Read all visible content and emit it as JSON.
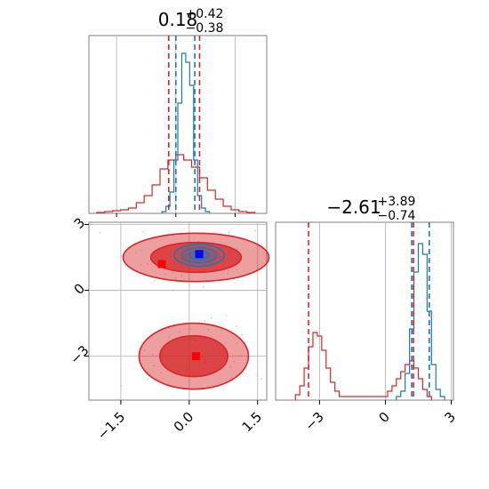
{
  "chart_data": {
    "type": "corner",
    "colors": {
      "red": "#d62728",
      "blue": "#1f77b4",
      "grid": "#b0b0b0",
      "axis": "#808080"
    },
    "series": [
      {
        "name": "",
        "color": "#d62728"
      },
      {
        "name": "",
        "color": "#1f77b4"
      }
    ],
    "panels": [
      {
        "id": "top-left-histogram",
        "type": "histogram",
        "title": {
          "main": "0.18",
          "sup": "+0.42",
          "sub": "−0.38"
        },
        "xlim": [
          -2.2,
          2.3
        ],
        "ylim": [
          0,
          1.0
        ],
        "grid": true,
        "quantile_lines": {
          "red": [
            -0.18,
            0.6
          ],
          "blue": [
            0.0,
            0.48
          ]
        },
        "red_hist": {
          "x": [
            -1.9,
            -1.7,
            -1.5,
            -1.3,
            -1.1,
            -0.9,
            -0.7,
            -0.5,
            -0.3,
            -0.1,
            0.1,
            0.3,
            0.5,
            0.7,
            0.9,
            1.1,
            1.3,
            1.5,
            1.7,
            1.9
          ],
          "y": [
            0.005,
            0.01,
            0.015,
            0.02,
            0.03,
            0.06,
            0.1,
            0.16,
            0.25,
            0.3,
            0.33,
            0.3,
            0.26,
            0.2,
            0.13,
            0.08,
            0.04,
            0.02,
            0.01,
            0.005
          ]
        },
        "blue_hist": {
          "x": [
            -0.3,
            -0.2,
            -0.1,
            0.0,
            0.1,
            0.2,
            0.3,
            0.4,
            0.5,
            0.6,
            0.7,
            0.8
          ],
          "y": [
            0.01,
            0.04,
            0.12,
            0.3,
            0.62,
            0.9,
            0.85,
            0.72,
            0.3,
            0.1,
            0.03,
            0.01
          ]
        }
      },
      {
        "id": "bottom-left-2d",
        "type": "scatter-contour",
        "xlim": [
          -2.2,
          1.7
        ],
        "ylim": [
          -5.0,
          3.1
        ],
        "xticks": [
          -1.5,
          0.0,
          1.5
        ],
        "xtick_labels": [
          "−1.5",
          "0.0",
          "1.5"
        ],
        "yticks": [
          -3,
          0,
          3
        ],
        "ytick_labels": [
          "−3",
          "0",
          "3"
        ],
        "grid": true,
        "red_modes": [
          {
            "x": 0.15,
            "y": 1.5,
            "rx": 1.6,
            "ry": 1.1
          },
          {
            "x": 0.1,
            "y": -3.0,
            "rx": 1.2,
            "ry": 1.5
          }
        ],
        "blue_mode": {
          "x": 0.22,
          "y": 1.6,
          "rx": 0.55,
          "ry": 0.5
        },
        "markers": [
          {
            "color": "red",
            "x": -0.6,
            "y": 1.2
          },
          {
            "color": "red",
            "x": 0.15,
            "y": -3.0
          },
          {
            "color": "blue",
            "x": 0.22,
            "y": 1.65
          }
        ]
      },
      {
        "id": "bottom-right-histogram",
        "type": "histogram",
        "title": {
          "main": "−2.61",
          "sup": "+3.89",
          "sub": "−0.74"
        },
        "xlim": [
          -5.0,
          3.1
        ],
        "ylim": [
          0,
          1.0
        ],
        "xticks": [
          -3,
          0,
          3
        ],
        "xtick_labels": [
          "−3",
          "0",
          "3"
        ],
        "grid": true,
        "quantile_lines": {
          "red": [
            -3.5,
            1.28
          ],
          "blue": [
            1.2,
            2.0
          ]
        },
        "red_hist": {
          "x": [
            -4.0,
            -3.8,
            -3.6,
            -3.4,
            -3.2,
            -3.0,
            -2.8,
            -2.6,
            -2.4,
            -2.2,
            -2.0,
            0.0,
            0.2,
            0.4,
            0.6,
            0.8,
            1.0,
            1.2,
            1.4,
            1.6,
            1.8,
            2.0
          ],
          "y": [
            0.03,
            0.08,
            0.18,
            0.3,
            0.38,
            0.36,
            0.28,
            0.18,
            0.1,
            0.05,
            0.02,
            0.02,
            0.05,
            0.08,
            0.12,
            0.16,
            0.2,
            0.22,
            0.18,
            0.12,
            0.06,
            0.02
          ]
        },
        "blue_hist": {
          "x": [
            0.6,
            0.8,
            1.0,
            1.2,
            1.4,
            1.6,
            1.8,
            2.0,
            2.2,
            2.4,
            2.6
          ],
          "y": [
            0.02,
            0.05,
            0.15,
            0.4,
            0.72,
            0.88,
            0.82,
            0.5,
            0.2,
            0.06,
            0.02
          ]
        }
      }
    ]
  }
}
